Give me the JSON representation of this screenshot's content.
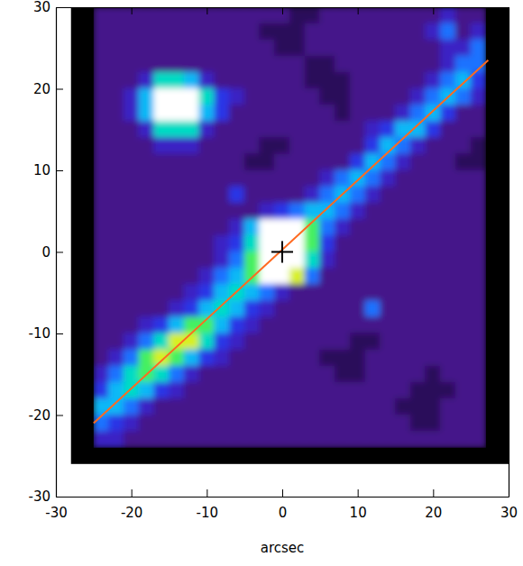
{
  "chart_data": {
    "type": "heatmap",
    "x_label": "arcsec",
    "xlim": [
      -30,
      30
    ],
    "ylim": [
      -30,
      30
    ],
    "xticks": [
      -30,
      -20,
      -10,
      0,
      10,
      20,
      30
    ],
    "yticks": [
      -30,
      -20,
      -10,
      0,
      10,
      20,
      30
    ],
    "image_extent": {
      "x": [
        -28,
        30
      ],
      "y": [
        -26,
        30
      ]
    },
    "x_bins": [
      -25,
      -23,
      -21,
      -19,
      -17,
      -15,
      -13,
      -11,
      -9,
      -7,
      -5,
      -3,
      -1,
      1,
      3,
      5,
      7,
      9,
      11,
      13,
      15,
      17,
      19,
      21,
      23,
      25,
      27
    ],
    "y_bins": [
      30,
      28,
      26,
      24,
      22,
      20,
      18,
      16,
      14,
      12,
      10,
      8,
      6,
      4,
      2,
      0,
      -2,
      -4,
      -6,
      -8,
      -10,
      -12,
      -14,
      -16,
      -18,
      -20,
      -22,
      -24
    ],
    "cells": [
      [
        1,
        1,
        1,
        1,
        1,
        1,
        1,
        1,
        1,
        1,
        1,
        1,
        1,
        0,
        0,
        1,
        1,
        1,
        1,
        1,
        1,
        1,
        1,
        2,
        1,
        1
      ],
      [
        1,
        1,
        1,
        1,
        1,
        1,
        1,
        1,
        1,
        1,
        1,
        0,
        0,
        0,
        1,
        1,
        1,
        1,
        1,
        1,
        1,
        1,
        2,
        4,
        1,
        2
      ],
      [
        1,
        1,
        1,
        1,
        1,
        1,
        1,
        1,
        1,
        1,
        1,
        1,
        0,
        0,
        1,
        1,
        1,
        1,
        1,
        1,
        1,
        1,
        1,
        2,
        2,
        4
      ],
      [
        1,
        1,
        1,
        1,
        1,
        1,
        1,
        1,
        1,
        1,
        1,
        1,
        1,
        1,
        0,
        0,
        1,
        1,
        1,
        1,
        1,
        1,
        1,
        2,
        4,
        4
      ],
      [
        1,
        1,
        1,
        2,
        6,
        6,
        5,
        2,
        1,
        1,
        1,
        1,
        1,
        1,
        0,
        0,
        0,
        1,
        1,
        1,
        1,
        1,
        2,
        4,
        5,
        3
      ],
      [
        1,
        1,
        2,
        5,
        9,
        9,
        9,
        6,
        3,
        2,
        1,
        1,
        1,
        1,
        1,
        0,
        0,
        1,
        1,
        1,
        1,
        2,
        4,
        5,
        4,
        2
      ],
      [
        1,
        1,
        2,
        5,
        9,
        9,
        9,
        5,
        3,
        1,
        1,
        1,
        1,
        1,
        1,
        1,
        0,
        1,
        1,
        1,
        2,
        4,
        5,
        3,
        1,
        1
      ],
      [
        1,
        1,
        1,
        2,
        6,
        6,
        6,
        2,
        1,
        1,
        1,
        1,
        1,
        1,
        1,
        1,
        1,
        1,
        2,
        3,
        5,
        5,
        3,
        1,
        1,
        1
      ],
      [
        1,
        1,
        1,
        1,
        2,
        2,
        2,
        1,
        1,
        1,
        1,
        0,
        0,
        1,
        1,
        1,
        1,
        1,
        3,
        5,
        4,
        2,
        1,
        1,
        1,
        0
      ],
      [
        1,
        1,
        1,
        1,
        1,
        1,
        1,
        1,
        1,
        1,
        0,
        0,
        1,
        1,
        1,
        1,
        1,
        3,
        5,
        4,
        2,
        1,
        1,
        1,
        0,
        0
      ],
      [
        1,
        1,
        1,
        1,
        1,
        1,
        1,
        1,
        1,
        1,
        1,
        1,
        1,
        1,
        1,
        2,
        4,
        5,
        4,
        2,
        1,
        1,
        1,
        1,
        1,
        1
      ],
      [
        1,
        1,
        1,
        1,
        1,
        1,
        1,
        1,
        1,
        3,
        1,
        1,
        1,
        1,
        2,
        4,
        5,
        4,
        2,
        1,
        1,
        1,
        1,
        1,
        1,
        1
      ],
      [
        1,
        1,
        1,
        1,
        1,
        1,
        1,
        1,
        1,
        1,
        1,
        2,
        3,
        4,
        5,
        5,
        4,
        2,
        1,
        1,
        1,
        1,
        1,
        1,
        1,
        1
      ],
      [
        1,
        1,
        1,
        1,
        1,
        1,
        1,
        1,
        1,
        2,
        5,
        9,
        9,
        9,
        7,
        4,
        2,
        1,
        1,
        1,
        1,
        1,
        1,
        1,
        1,
        1
      ],
      [
        1,
        1,
        1,
        1,
        1,
        1,
        1,
        1,
        2,
        3,
        6,
        9,
        9,
        9,
        7,
        3,
        1,
        1,
        1,
        1,
        1,
        1,
        1,
        1,
        1,
        1
      ],
      [
        1,
        1,
        1,
        1,
        1,
        1,
        1,
        1,
        2,
        4,
        7,
        9,
        9,
        9,
        6,
        2,
        1,
        1,
        1,
        1,
        1,
        1,
        1,
        1,
        1,
        1
      ],
      [
        1,
        1,
        1,
        1,
        1,
        1,
        1,
        2,
        4,
        5,
        7,
        9,
        9,
        8,
        4,
        1,
        1,
        1,
        1,
        1,
        1,
        1,
        1,
        1,
        1,
        1
      ],
      [
        1,
        1,
        1,
        1,
        1,
        1,
        2,
        3,
        5,
        6,
        5,
        4,
        2,
        1,
        1,
        1,
        1,
        1,
        1,
        1,
        1,
        1,
        1,
        1,
        1,
        1
      ],
      [
        1,
        1,
        1,
        1,
        1,
        2,
        3,
        5,
        6,
        5,
        3,
        2,
        1,
        1,
        1,
        1,
        1,
        1,
        4,
        1,
        1,
        1,
        1,
        1,
        1,
        1
      ],
      [
        1,
        1,
        1,
        2,
        3,
        5,
        7,
        7,
        5,
        3,
        2,
        1,
        1,
        1,
        1,
        1,
        1,
        1,
        1,
        1,
        1,
        1,
        1,
        1,
        1,
        1
      ],
      [
        1,
        1,
        2,
        4,
        6,
        8,
        8,
        6,
        3,
        2,
        1,
        1,
        1,
        1,
        1,
        1,
        1,
        0,
        0,
        1,
        1,
        1,
        1,
        1,
        1,
        1
      ],
      [
        1,
        2,
        4,
        7,
        8,
        7,
        5,
        3,
        2,
        1,
        1,
        1,
        1,
        1,
        1,
        0,
        0,
        0,
        1,
        1,
        1,
        1,
        1,
        1,
        1,
        1
      ],
      [
        2,
        4,
        6,
        7,
        6,
        4,
        2,
        1,
        1,
        1,
        1,
        1,
        1,
        1,
        1,
        1,
        0,
        0,
        1,
        1,
        1,
        1,
        0,
        1,
        1,
        1
      ],
      [
        3,
        5,
        6,
        5,
        3,
        2,
        1,
        1,
        1,
        1,
        1,
        1,
        1,
        1,
        1,
        1,
        1,
        1,
        1,
        1,
        1,
        0,
        0,
        0,
        1,
        1
      ],
      [
        5,
        5,
        4,
        2,
        1,
        1,
        1,
        1,
        1,
        1,
        1,
        1,
        1,
        1,
        1,
        1,
        1,
        1,
        1,
        1,
        0,
        0,
        0,
        1,
        1,
        1
      ],
      [
        4,
        3,
        2,
        1,
        1,
        1,
        1,
        1,
        1,
        1,
        1,
        1,
        1,
        1,
        1,
        1,
        1,
        1,
        1,
        1,
        1,
        0,
        0,
        1,
        1,
        1
      ],
      [
        2,
        2,
        1,
        1,
        1,
        1,
        1,
        1,
        1,
        1,
        1,
        1,
        1,
        1,
        1,
        1,
        1,
        1,
        1,
        1,
        1,
        1,
        1,
        1,
        1,
        1
      ]
    ],
    "series": [
      {
        "type": "line",
        "color": "#ff6a20",
        "x": [
          -25,
          27.3
        ],
        "values": [
          -21,
          23.5
        ]
      },
      {
        "type": "scatter",
        "marker": "cross",
        "color": "#000000",
        "x": [
          0
        ],
        "values": [
          0
        ]
      }
    ]
  }
}
